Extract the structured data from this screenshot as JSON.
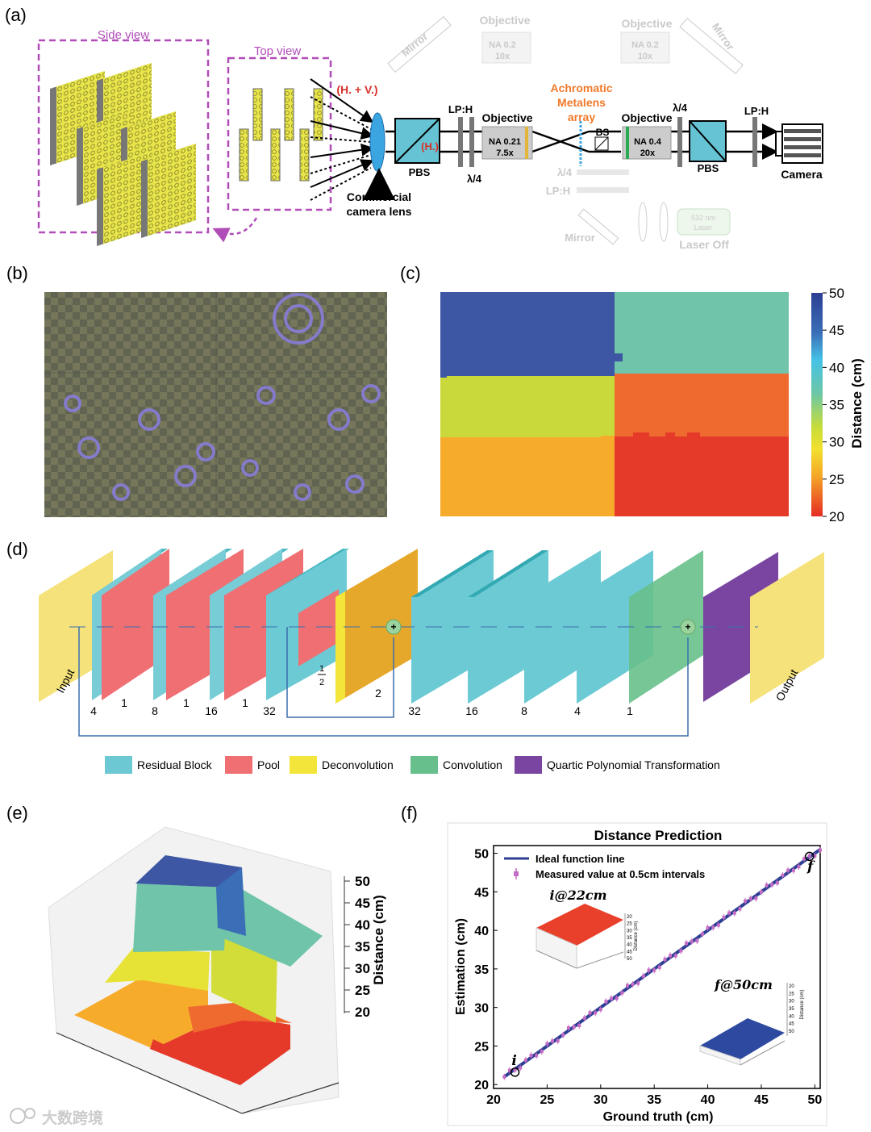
{
  "panel_a": {
    "letter": "(a)",
    "side_view": "Side view",
    "top_view": "Top view",
    "hv_label": "(H. + V.)",
    "h_label": "(H.)",
    "camera_lens": "Commercial",
    "camera_lens2": "camera lens",
    "pbs1": "PBS",
    "pbs2": "PBS",
    "lph1": "LP:H",
    "lph2": "LP:H",
    "lph_ghost": "LP:H",
    "lambda4_1": "λ/4",
    "lambda4_2": "λ/4",
    "lambda4_ghost": "λ/4",
    "objective1": "Objective",
    "objective1_na": "NA 0.21",
    "objective1_mag": "7.5x",
    "objective2": "Objective",
    "objective2_na": "NA 0.4",
    "objective2_mag": "20x",
    "ghost_obj1": "Objective",
    "ghost_obj1_na": "NA 0.2",
    "ghost_obj1_mag": "10x",
    "ghost_obj2": "Objective",
    "ghost_obj2_na": "NA 0.2",
    "ghost_obj2_mag": "10x",
    "mirror1": "Mirror",
    "mirror2": "Mirror",
    "mirror3": "Mirror",
    "metalens1": "Achromatic",
    "metalens2": "Metalens",
    "metalens3": "array",
    "bs": "BS",
    "camera": "Camera",
    "laser": "532 nm",
    "laser2": "Laser",
    "laser_off": "Laser Off"
  },
  "panel_b": {
    "letter": "(b)"
  },
  "panel_c": {
    "letter": "(c)",
    "colorbar_label": "Distance (cm)",
    "ticks": [
      "50",
      "45",
      "40",
      "35",
      "30",
      "25",
      "20"
    ]
  },
  "panel_d": {
    "letter": "(d)",
    "input": "Input",
    "output": "Output",
    "channels": [
      "4",
      "1",
      "8",
      "1",
      "16",
      "1",
      "32",
      "2",
      "32",
      "16",
      "8",
      "4",
      "1"
    ],
    "half_num": "1",
    "half_den": "2",
    "legend": [
      {
        "label": "Residual Block",
        "color": "#6cc9d3"
      },
      {
        "label": "Pool",
        "color": "#ef6f73"
      },
      {
        "label": "Deconvolution",
        "color": "#f4e53a"
      },
      {
        "label": "Convolution",
        "color": "#67c08b"
      },
      {
        "label": "Quartic Polynomial Transformation",
        "color": "#7a45a0"
      }
    ]
  },
  "panel_e": {
    "letter": "(e)",
    "zlabel": "Distance (cm)",
    "ticks": [
      "50",
      "45",
      "40",
      "35",
      "30",
      "25",
      "20"
    ]
  },
  "panel_f": {
    "letter": "(f)",
    "chart_data": {
      "type": "line",
      "title": "Distance Prediction",
      "xlabel": "Ground truth (cm)",
      "ylabel": "Estimation (cm)",
      "xlim": [
        20,
        50.5
      ],
      "ylim": [
        19.5,
        51
      ],
      "xticks": [
        "20",
        "25",
        "30",
        "35",
        "40",
        "45",
        "50"
      ],
      "yticks": [
        "20",
        "25",
        "30",
        "35",
        "40",
        "45",
        "50"
      ],
      "series": [
        {
          "name": "Ideal function line",
          "x": [
            21,
            50.5
          ],
          "y": [
            21,
            50.5
          ],
          "color": "#2b3f93"
        },
        {
          "name": "Measured value at 0.5cm intervals",
          "x_start": 21,
          "x_end": 50.5,
          "step": 0.5,
          "color": "#c46cc6"
        }
      ],
      "annotations": [
        {
          "label": "i",
          "x": 22,
          "y": 21.6
        },
        {
          "label": "f",
          "x": 49.5,
          "y": 49.6
        }
      ],
      "insets": [
        {
          "title": "i@22cm",
          "color": "#e8402b",
          "ticks": [
            "20",
            "25",
            "30",
            "35",
            "40",
            "45",
            "50"
          ],
          "zlabel": "Distance (cm)"
        },
        {
          "title": "f@50cm",
          "color": "#2d4aa0",
          "ticks": [
            "20",
            "25",
            "30",
            "35",
            "40",
            "45",
            "50"
          ],
          "zlabel": "Distance (cm)"
        }
      ]
    }
  },
  "watermark": "大数跨境"
}
